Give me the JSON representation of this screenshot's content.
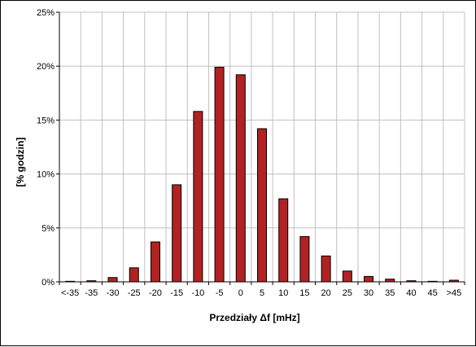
{
  "chart_data": {
    "type": "bar",
    "title": "",
    "xlabel": "Przedziały Δf [mHz]",
    "ylabel": "[%  godzin]",
    "categories": [
      "<-35",
      "-35",
      "-30",
      "-25",
      "-20",
      "-15",
      "-10",
      "-5",
      "0",
      "5",
      "10",
      "15",
      "20",
      "25",
      "30",
      "35",
      "40",
      "45",
      ">45"
    ],
    "values": [
      0.05,
      0.1,
      0.4,
      1.3,
      3.7,
      9.0,
      15.8,
      19.9,
      19.2,
      14.2,
      7.7,
      4.2,
      2.4,
      1.0,
      0.5,
      0.25,
      0.1,
      0.05,
      0.15
    ],
    "ylim": [
      0,
      25
    ],
    "yticks": [
      "0%",
      "5%",
      "10%",
      "15%",
      "20%",
      "25%"
    ],
    "grid": true,
    "legend": "none",
    "colors": {
      "bar": "#B22222",
      "bar_border": "#000000",
      "grid": "#C0C0C0"
    }
  }
}
